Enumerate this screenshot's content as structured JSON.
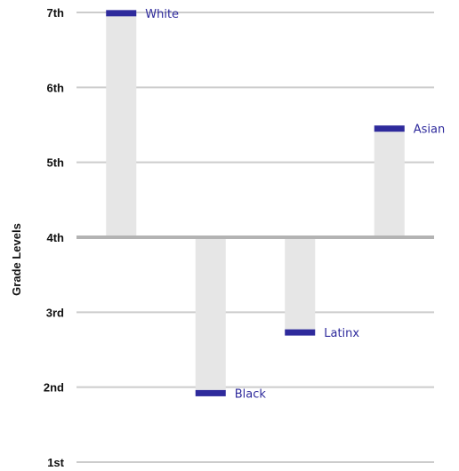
{
  "chart_data": {
    "type": "bar",
    "ylabel": "Grade Levels",
    "y_ticks": [
      {
        "value": 1,
        "label": "1st"
      },
      {
        "value": 2,
        "label": "2nd"
      },
      {
        "value": 3,
        "label": "3rd"
      },
      {
        "value": 4,
        "label": "4th"
      },
      {
        "value": 5,
        "label": "5th"
      },
      {
        "value": 6,
        "label": "6th"
      },
      {
        "value": 7,
        "label": "7th"
      }
    ],
    "ylim": [
      1,
      7
    ],
    "baseline": 4,
    "grid": true,
    "categories": [
      "White",
      "Black",
      "Latinx",
      "Asian"
    ],
    "values": [
      6.99,
      1.92,
      2.73,
      5.45
    ],
    "colors": {
      "bar": "#e6e6e6",
      "marker": "#2e2a9c",
      "label": "#2e2a9c",
      "gridline": "#cccccc",
      "baseline": "#b3b3b3"
    }
  }
}
